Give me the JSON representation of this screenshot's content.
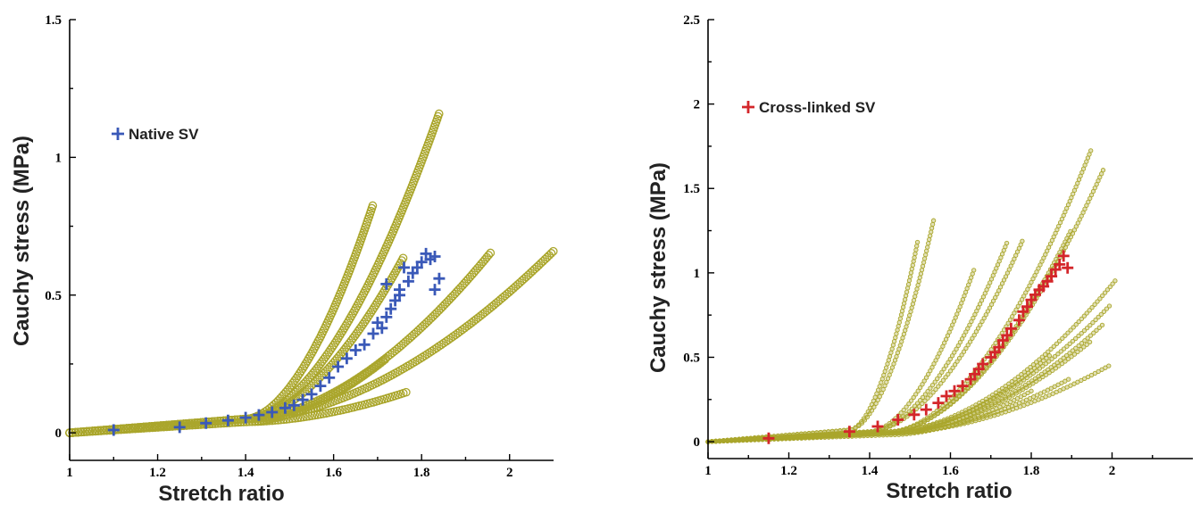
{
  "colors": {
    "reference": "#aaa62c",
    "native": "#3a59b8",
    "crosslinked": "#d4262a",
    "axis": "#000000"
  },
  "chart_data": [
    {
      "type": "scatter",
      "xlabel": "Stretch ratio",
      "ylabel": "Cauchy stress (MPa)",
      "xlim": [
        1.0,
        2.1
      ],
      "ylim": [
        -0.1,
        1.5
      ],
      "x_ticks": [
        "1",
        "1.2",
        "1.4",
        "1.6",
        "1.8",
        "2"
      ],
      "y_ticks": [
        "0",
        "0.5",
        "1",
        "1.5"
      ],
      "legend_position": "upper-left",
      "reference_series": [
        {
          "name": "",
          "marker": "open-circle",
          "x_range": [
            1.0,
            1.84
          ],
          "x_knee": 1.4,
          "y_knee": 0.05,
          "y_end": 1.16
        },
        {
          "name": "",
          "marker": "open-circle",
          "x_range": [
            1.0,
            1.69
          ],
          "x_knee": 1.4,
          "y_knee": 0.05,
          "y_end": 0.83
        },
        {
          "name": "",
          "marker": "open-circle",
          "x_range": [
            1.0,
            1.76
          ],
          "x_knee": 1.4,
          "y_knee": 0.05,
          "y_end": 0.64
        },
        {
          "name": "",
          "marker": "open-circle",
          "x_range": [
            1.0,
            1.96
          ],
          "x_knee": 1.4,
          "y_knee": 0.05,
          "y_end": 0.66
        },
        {
          "name": "",
          "marker": "open-circle",
          "x_range": [
            1.0,
            2.1
          ],
          "x_knee": 1.4,
          "y_knee": 0.05,
          "y_end": 0.66
        },
        {
          "name": "",
          "marker": "open-circle",
          "x_range": [
            1.0,
            1.72
          ],
          "x_knee": 1.4,
          "y_knee": 0.04,
          "y_end": 0.27
        },
        {
          "name": "",
          "marker": "open-circle",
          "x_range": [
            1.0,
            1.77
          ],
          "x_knee": 1.4,
          "y_knee": 0.04,
          "y_end": 0.15
        }
      ],
      "highlight_series": {
        "name": "Native SV",
        "marker": "plus",
        "x": [
          1.1,
          1.25,
          1.31,
          1.36,
          1.4,
          1.43,
          1.46,
          1.49,
          1.51,
          1.53,
          1.55,
          1.57,
          1.59,
          1.61,
          1.63,
          1.65,
          1.67,
          1.69,
          1.7,
          1.71,
          1.72,
          1.72,
          1.73,
          1.74,
          1.75,
          1.75,
          1.76,
          1.77,
          1.78,
          1.79,
          1.8,
          1.81,
          1.82,
          1.83,
          1.83,
          1.84
        ],
        "y": [
          0.01,
          0.02,
          0.035,
          0.045,
          0.055,
          0.065,
          0.075,
          0.09,
          0.1,
          0.12,
          0.14,
          0.17,
          0.2,
          0.24,
          0.27,
          0.3,
          0.32,
          0.36,
          0.4,
          0.38,
          0.42,
          0.54,
          0.45,
          0.48,
          0.5,
          0.52,
          0.6,
          0.55,
          0.58,
          0.6,
          0.62,
          0.65,
          0.63,
          0.64,
          0.52,
          0.56
        ]
      }
    },
    {
      "type": "scatter",
      "xlabel": "Stretch ratio",
      "ylabel": "Cauchy stress (MPa)",
      "xlim": [
        1.0,
        2.2
      ],
      "ylim": [
        -0.1,
        2.5
      ],
      "x_ticks": [
        "1",
        "1.2",
        "1.4",
        "1.6",
        "1.8",
        "2"
      ],
      "y_ticks": [
        "0",
        "0.5",
        "1",
        "1.5",
        "2",
        "2.5"
      ],
      "legend_position": "upper-left",
      "reference_series": [
        {
          "name": "",
          "marker": "small-circle",
          "x_range": [
            1.0,
            1.56
          ],
          "x_knee": 1.35,
          "y_knee": 0.07,
          "y_end": 1.33
        },
        {
          "name": "",
          "marker": "small-circle",
          "x_range": [
            1.0,
            1.52
          ],
          "x_knee": 1.35,
          "y_knee": 0.07,
          "y_end": 1.2
        },
        {
          "name": "",
          "marker": "small-circle",
          "x_range": [
            1.0,
            1.74
          ],
          "x_knee": 1.4,
          "y_knee": 0.06,
          "y_end": 1.18
        },
        {
          "name": "",
          "marker": "small-circle",
          "x_range": [
            1.0,
            1.78
          ],
          "x_knee": 1.4,
          "y_knee": 0.06,
          "y_end": 1.2
        },
        {
          "name": "",
          "marker": "small-circle",
          "x_range": [
            1.0,
            1.66
          ],
          "x_knee": 1.4,
          "y_knee": 0.06,
          "y_end": 1.03
        },
        {
          "name": "",
          "marker": "small-circle",
          "x_range": [
            1.0,
            1.95
          ],
          "x_knee": 1.45,
          "y_knee": 0.06,
          "y_end": 1.74
        },
        {
          "name": "",
          "marker": "small-circle",
          "x_range": [
            1.0,
            1.98
          ],
          "x_knee": 1.45,
          "y_knee": 0.06,
          "y_end": 1.62
        },
        {
          "name": "",
          "marker": "small-circle",
          "x_range": [
            1.0,
            1.9
          ],
          "x_knee": 1.45,
          "y_knee": 0.06,
          "y_end": 1.26
        },
        {
          "name": "",
          "marker": "small-circle",
          "x_range": [
            1.0,
            2.01
          ],
          "x_knee": 1.45,
          "y_knee": 0.06,
          "y_end": 0.96
        },
        {
          "name": "",
          "marker": "small-circle",
          "x_range": [
            1.0,
            2.0
          ],
          "x_knee": 1.45,
          "y_knee": 0.06,
          "y_end": 0.82
        },
        {
          "name": "",
          "marker": "small-circle",
          "x_range": [
            1.0,
            1.98
          ],
          "x_knee": 1.45,
          "y_knee": 0.05,
          "y_end": 0.7
        },
        {
          "name": "",
          "marker": "small-circle",
          "x_range": [
            1.0,
            1.95
          ],
          "x_knee": 1.45,
          "y_knee": 0.05,
          "y_end": 0.6
        },
        {
          "name": "",
          "marker": "small-circle",
          "x_range": [
            1.0,
            2.0
          ],
          "x_knee": 1.45,
          "y_knee": 0.05,
          "y_end": 0.46
        },
        {
          "name": "",
          "marker": "small-circle",
          "x_range": [
            1.0,
            1.85
          ],
          "x_knee": 1.45,
          "y_knee": 0.05,
          "y_end": 0.52
        },
        {
          "name": "",
          "marker": "small-circle",
          "x_range": [
            1.0,
            1.9
          ],
          "x_knee": 1.45,
          "y_knee": 0.05,
          "y_end": 0.38
        },
        {
          "name": "",
          "marker": "small-circle",
          "x_range": [
            1.0,
            1.8
          ],
          "x_knee": 1.45,
          "y_knee": 0.04,
          "y_end": 0.3
        }
      ],
      "highlight_series": {
        "name": "Cross-linked SV",
        "marker": "plus",
        "x": [
          1.15,
          1.35,
          1.42,
          1.47,
          1.51,
          1.54,
          1.57,
          1.59,
          1.61,
          1.63,
          1.65,
          1.66,
          1.67,
          1.68,
          1.7,
          1.71,
          1.72,
          1.73,
          1.74,
          1.75,
          1.77,
          1.78,
          1.79,
          1.8,
          1.81,
          1.82,
          1.83,
          1.84,
          1.85,
          1.86,
          1.87,
          1.88,
          1.89
        ],
        "y": [
          0.02,
          0.06,
          0.09,
          0.13,
          0.16,
          0.19,
          0.23,
          0.27,
          0.3,
          0.33,
          0.37,
          0.4,
          0.43,
          0.46,
          0.5,
          0.53,
          0.56,
          0.6,
          0.63,
          0.67,
          0.72,
          0.77,
          0.8,
          0.84,
          0.87,
          0.9,
          0.92,
          0.95,
          0.98,
          1.02,
          1.05,
          1.1,
          1.03
        ]
      }
    }
  ]
}
